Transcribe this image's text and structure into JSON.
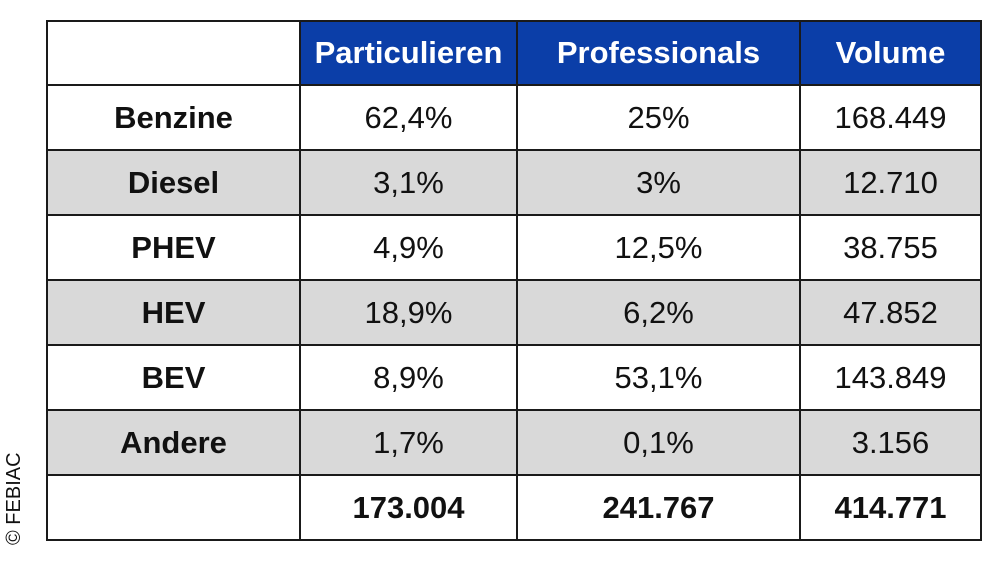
{
  "chart_data": {
    "type": "table",
    "columns": [
      "",
      "Particulieren",
      "Professionals",
      "Volume"
    ],
    "rows": [
      {
        "label": "Benzine",
        "particulieren": "62,4%",
        "professionals": "25%",
        "volume": "168.449",
        "shaded": false
      },
      {
        "label": "Diesel",
        "particulieren": "3,1%",
        "professionals": "3%",
        "volume": "12.710",
        "shaded": true
      },
      {
        "label": "PHEV",
        "particulieren": "4,9%",
        "professionals": "12,5%",
        "volume": "38.755",
        "shaded": false
      },
      {
        "label": "HEV",
        "particulieren": "18,9%",
        "professionals": "6,2%",
        "volume": "47.852",
        "shaded": true
      },
      {
        "label": "BEV",
        "particulieren": "8,9%",
        "professionals": "53,1%",
        "volume": "143.849",
        "shaded": false
      },
      {
        "label": "Andere",
        "particulieren": "1,7%",
        "professionals": "0,1%",
        "volume": "3.156",
        "shaded": true
      }
    ],
    "totals": {
      "label": "",
      "particulieren": "173.004",
      "professionals": "241.767",
      "volume": "414.771"
    }
  },
  "copyright": "© FEBIAC",
  "colors": {
    "header_bg": "#0b3ea8",
    "header_text": "#ffffff",
    "shaded_row": "#d9d9d9",
    "border": "#1a1a1a"
  }
}
